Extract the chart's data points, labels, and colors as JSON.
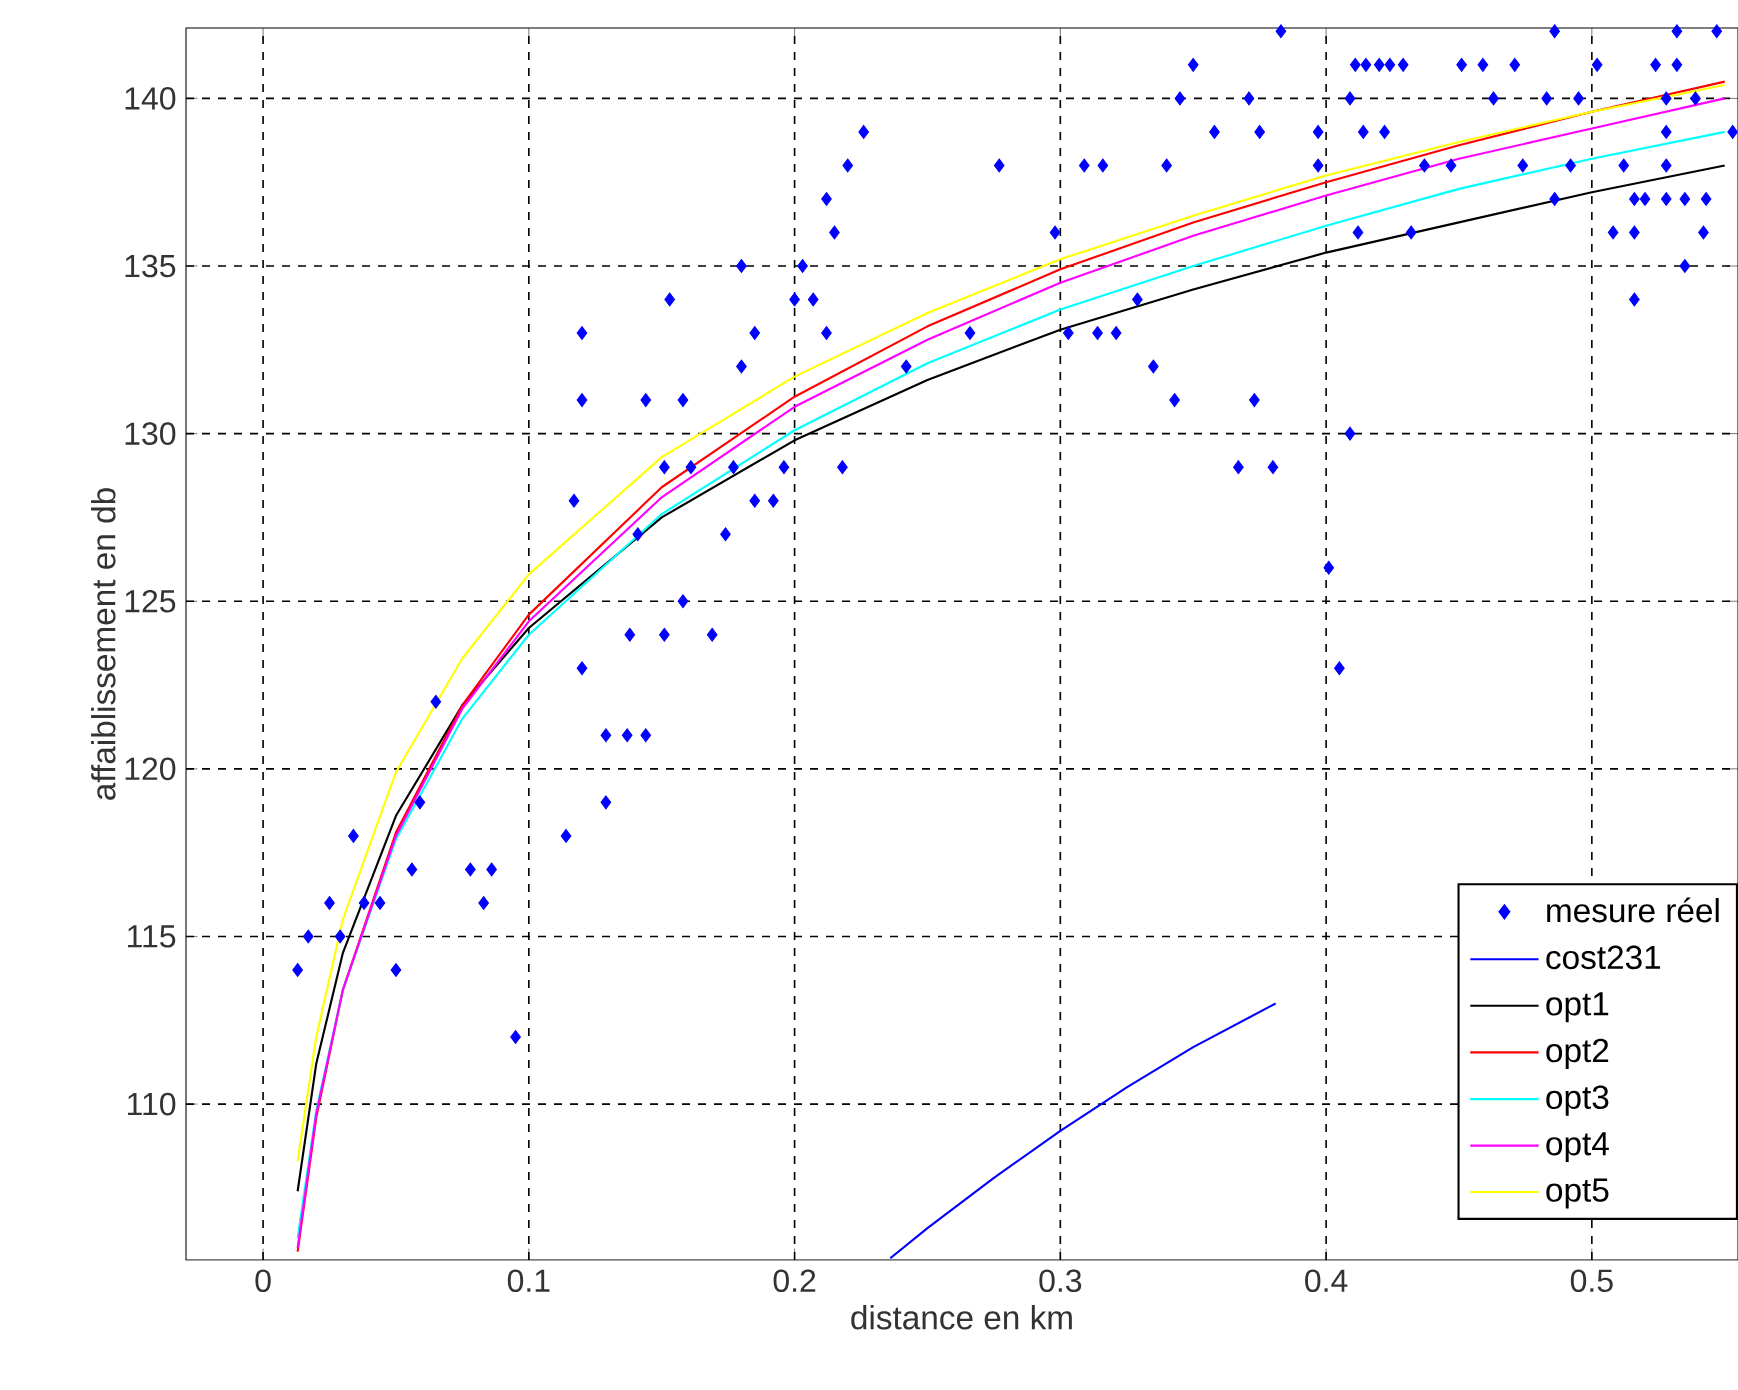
{
  "chart_data": {
    "type": "line",
    "xlabel": "distance en km",
    "ylabel": "affaiblissement en db",
    "xlim": [
      -0.029,
      0.555
    ],
    "ylim": [
      105.35,
      142.1
    ],
    "xticks": [
      0,
      0.1,
      0.2,
      0.3,
      0.4,
      0.5
    ],
    "yticks": [
      110,
      115,
      120,
      125,
      130,
      135,
      140
    ],
    "grid": true,
    "legend": "bottom right",
    "series": [
      {
        "name": "mesure réel",
        "type": "scatter",
        "marker": "diamond",
        "color": "#0000ff",
        "x": [
          0.095,
          0.013,
          0.05,
          0.017,
          0.029,
          0.025,
          0.038,
          0.044,
          0.083,
          0.056,
          0.078,
          0.086,
          0.034,
          0.114,
          0.059,
          0.129,
          0.129,
          0.137,
          0.144,
          0.065,
          0.12,
          0.405,
          0.138,
          0.151,
          0.169,
          0.158,
          0.401,
          0.141,
          0.174,
          0.117,
          0.185,
          0.192,
          0.151,
          0.161,
          0.177,
          0.196,
          0.218,
          0.367,
          0.38,
          0.409,
          0.12,
          0.144,
          0.158,
          0.343,
          0.373,
          0.18,
          0.242,
          0.335,
          0.12,
          0.185,
          0.212,
          0.266,
          0.303,
          0.314,
          0.321,
          0.153,
          0.2,
          0.207,
          0.329,
          0.516,
          0.18,
          0.203,
          0.535,
          0.215,
          0.298,
          0.412,
          0.432,
          0.508,
          0.516,
          0.542,
          0.212,
          0.486,
          0.516,
          0.52,
          0.528,
          0.535,
          0.543,
          0.22,
          0.277,
          0.309,
          0.316,
          0.34,
          0.397,
          0.437,
          0.447,
          0.474,
          0.492,
          0.512,
          0.528,
          0.226,
          0.358,
          0.375,
          0.397,
          0.414,
          0.422,
          0.528,
          0.553,
          0.345,
          0.371,
          0.409,
          0.463,
          0.483,
          0.495,
          0.528,
          0.539,
          0.35,
          0.411,
          0.415,
          0.42,
          0.424,
          0.429,
          0.451,
          0.459,
          0.471,
          0.502,
          0.524,
          0.532,
          0.383,
          0.486,
          0.532,
          0.547
        ],
        "values": [
          112,
          114,
          114,
          115,
          115,
          116,
          116,
          116,
          116,
          117,
          117,
          117,
          118,
          118,
          119,
          119,
          121,
          121,
          121,
          122,
          123,
          123,
          124,
          124,
          124,
          125,
          126,
          127,
          127,
          128,
          128,
          128,
          129,
          129,
          129,
          129,
          129,
          129,
          129,
          130,
          131,
          131,
          131,
          131,
          131,
          132,
          132,
          132,
          133,
          133,
          133,
          133,
          133,
          133,
          133,
          134,
          134,
          134,
          134,
          134,
          135,
          135,
          135,
          136,
          136,
          136,
          136,
          136,
          136,
          136,
          137,
          137,
          137,
          137,
          137,
          137,
          137,
          138,
          138,
          138,
          138,
          138,
          138,
          138,
          138,
          138,
          138,
          138,
          138,
          139,
          139,
          139,
          139,
          139,
          139,
          139,
          139,
          140,
          140,
          140,
          140,
          140,
          140,
          140,
          140,
          141,
          141,
          141,
          141,
          141,
          141,
          141,
          141,
          141,
          141,
          141,
          141,
          142,
          142,
          142,
          142
        ]
      },
      {
        "name": "cost231",
        "color": "#0000ff",
        "x": [
          0.236,
          0.25,
          0.275,
          0.3,
          0.325,
          0.35,
          0.381
        ],
        "values": [
          105.4,
          106.3,
          107.8,
          109.2,
          110.5,
          111.7,
          113.0
        ]
      },
      {
        "name": "opt1",
        "color": "#000000",
        "x": [
          0.013,
          0.02,
          0.03,
          0.05,
          0.075,
          0.1,
          0.15,
          0.2,
          0.25,
          0.3,
          0.35,
          0.4,
          0.45,
          0.5,
          0.55
        ],
        "values": [
          107.4,
          111.2,
          114.5,
          118.6,
          121.9,
          124.2,
          127.5,
          129.8,
          131.6,
          133.1,
          134.3,
          135.4,
          136.3,
          137.2,
          138.0
        ]
      },
      {
        "name": "opt2",
        "color": "#ff0000",
        "x": [
          0.013,
          0.02,
          0.03,
          0.05,
          0.075,
          0.1,
          0.15,
          0.2,
          0.25,
          0.3,
          0.35,
          0.4,
          0.45,
          0.5,
          0.55
        ],
        "values": [
          105.6,
          109.6,
          113.4,
          118.1,
          121.9,
          124.6,
          128.4,
          131.1,
          133.2,
          134.9,
          136.3,
          137.5,
          138.6,
          139.6,
          140.5
        ]
      },
      {
        "name": "opt3",
        "color": "#00ffff",
        "x": [
          0.013,
          0.02,
          0.03,
          0.05,
          0.075,
          0.1,
          0.15,
          0.2,
          0.25,
          0.3,
          0.35,
          0.4,
          0.45,
          0.5,
          0.55
        ],
        "values": [
          106.0,
          109.8,
          113.4,
          117.9,
          121.5,
          124.0,
          127.6,
          130.1,
          132.1,
          133.7,
          135.0,
          136.2,
          137.3,
          138.2,
          139.0
        ]
      },
      {
        "name": "opt4",
        "color": "#ff00ff",
        "x": [
          0.013,
          0.02,
          0.03,
          0.05,
          0.075,
          0.1,
          0.15,
          0.2,
          0.25,
          0.3,
          0.35,
          0.4,
          0.45,
          0.5,
          0.55
        ],
        "values": [
          105.7,
          109.7,
          113.4,
          118.0,
          121.8,
          124.4,
          128.1,
          130.8,
          132.8,
          134.5,
          135.9,
          137.1,
          138.2,
          139.1,
          140.0
        ]
      },
      {
        "name": "opt5",
        "color": "#ffff00",
        "x": [
          0.013,
          0.02,
          0.03,
          0.05,
          0.075,
          0.1,
          0.15,
          0.2,
          0.25,
          0.3,
          0.35,
          0.4,
          0.45,
          0.5,
          0.55
        ],
        "values": [
          108.3,
          112.0,
          115.5,
          119.9,
          123.3,
          125.8,
          129.3,
          131.7,
          133.6,
          135.2,
          136.5,
          137.7,
          138.7,
          139.6,
          140.4
        ]
      }
    ]
  }
}
